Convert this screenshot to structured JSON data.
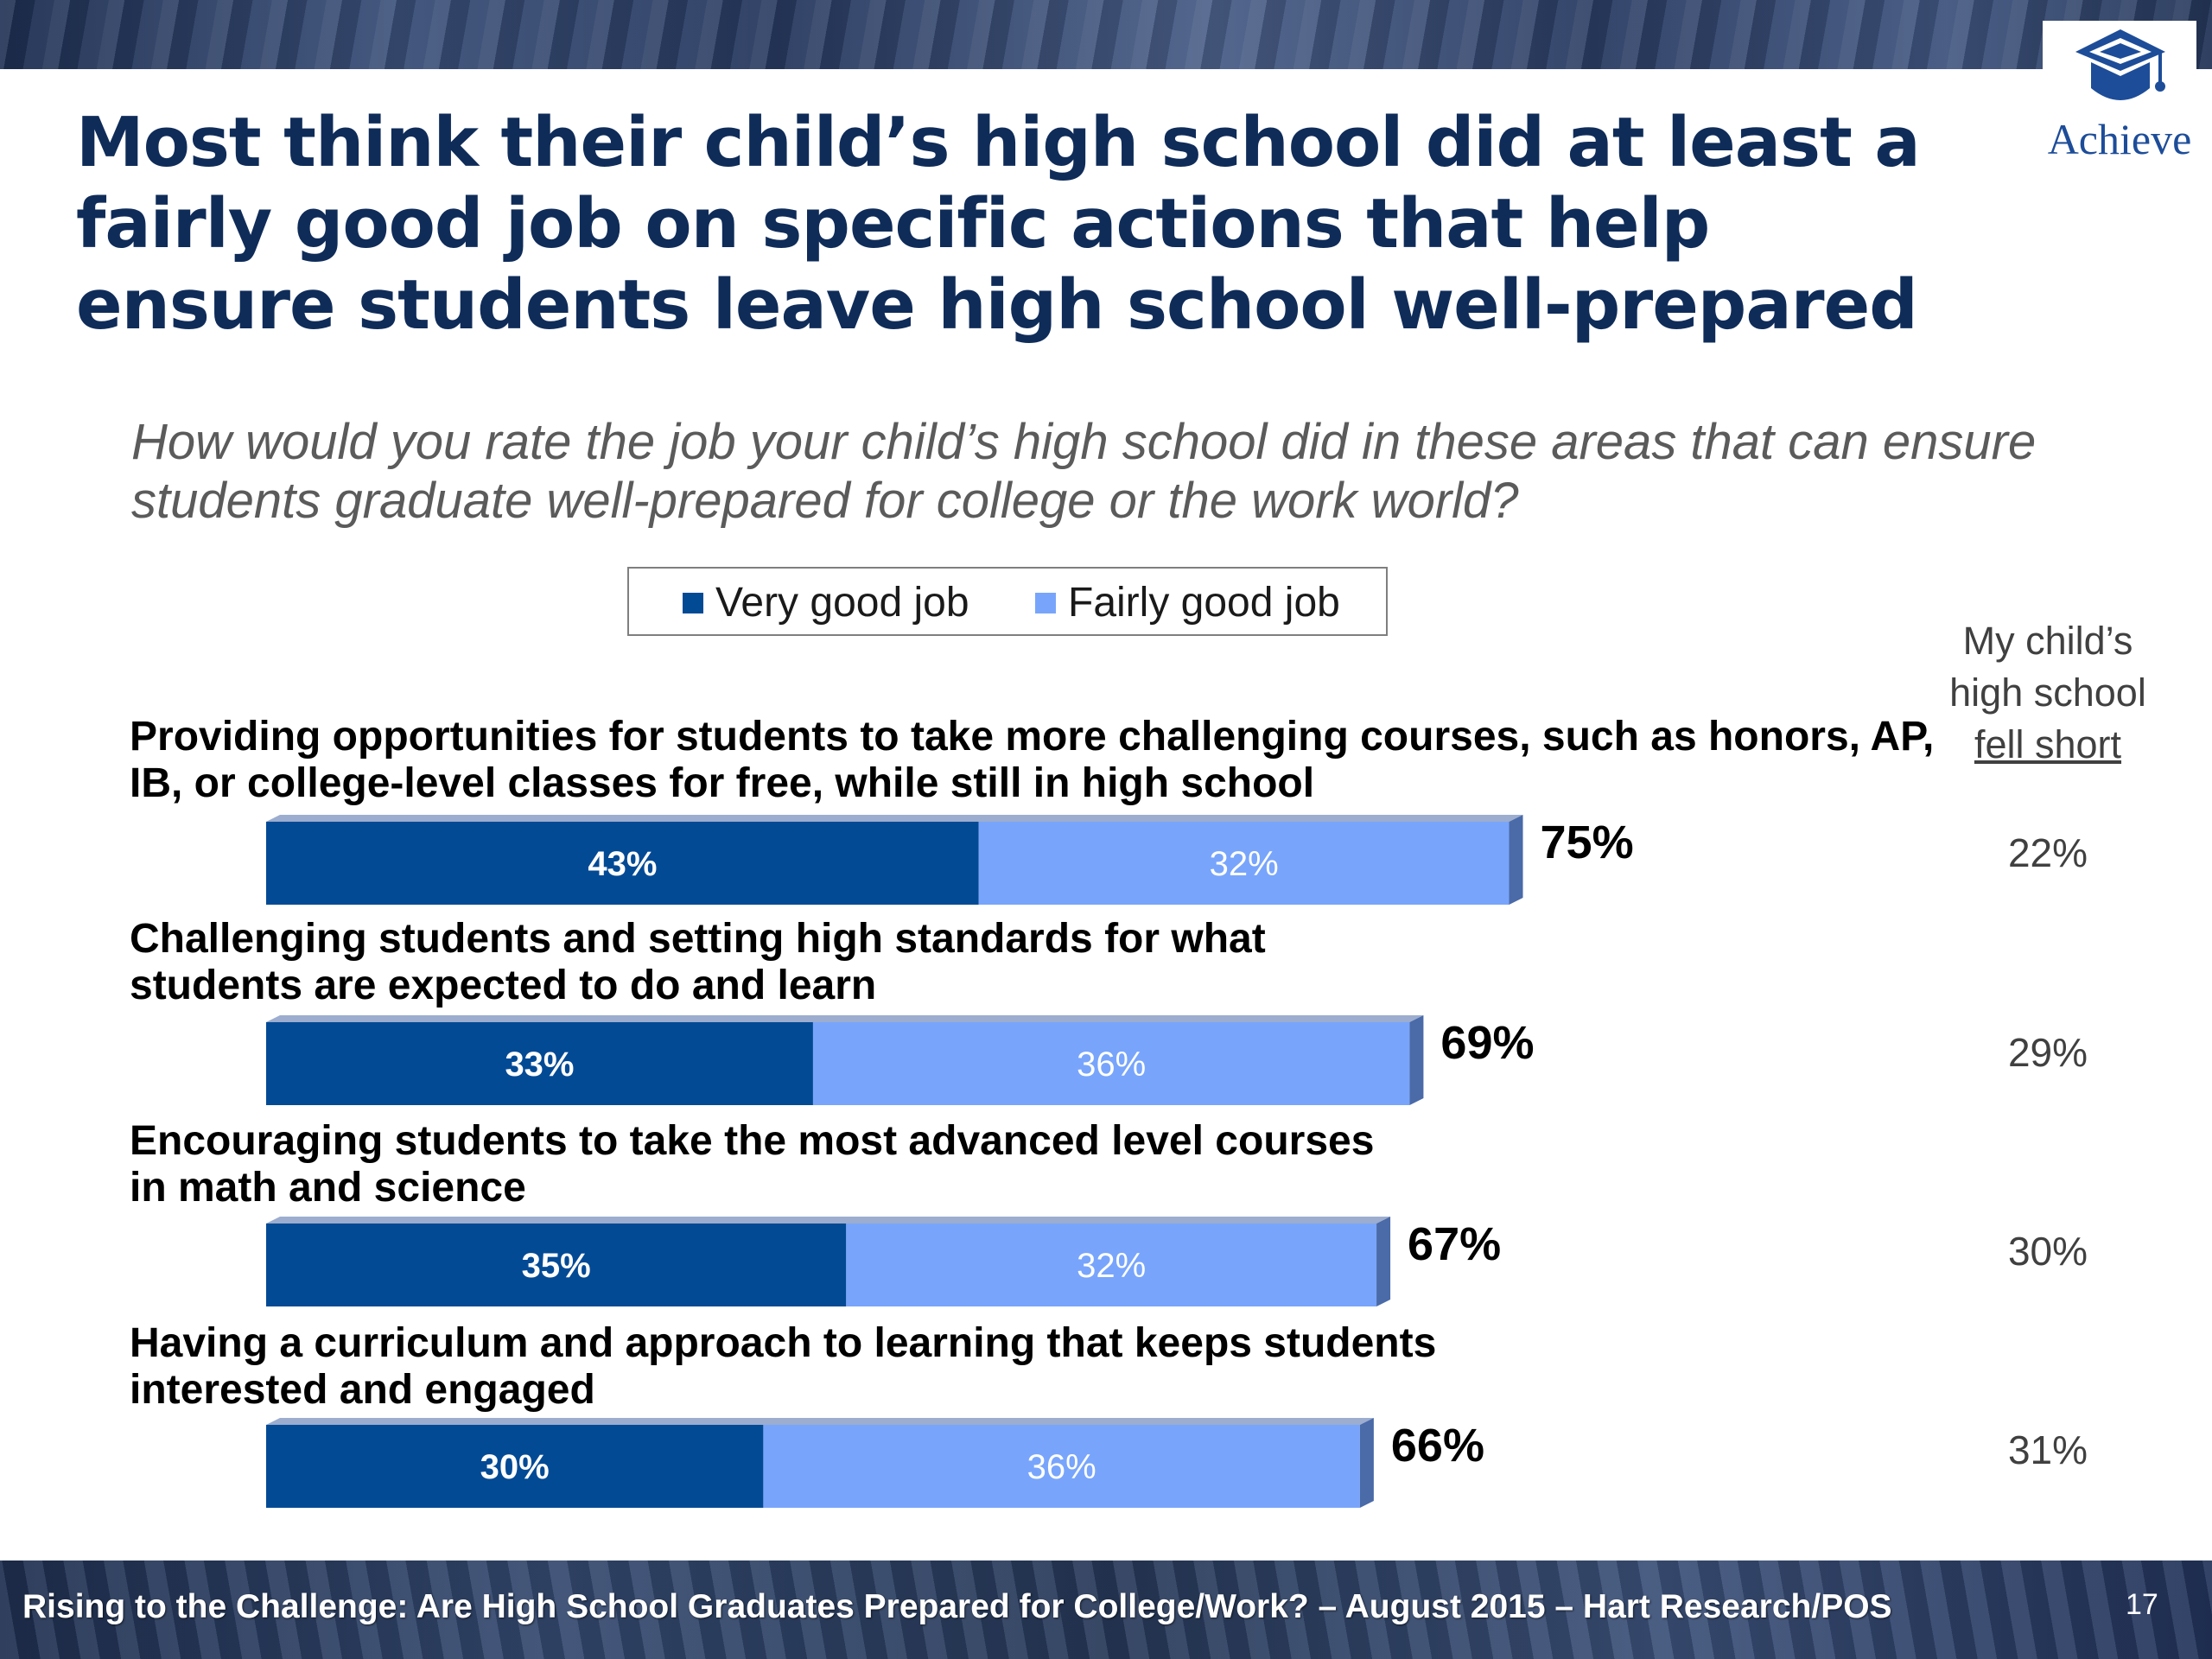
{
  "title": "Most think their child’s high school did at least a fairly good job on specific actions that help ensure students leave high school well-prepared",
  "question": "How would you rate the job your child’s high school did in these areas that can ensure students graduate well-prepared for college or the work world?",
  "logo": {
    "text": "Achieve",
    "icon": "graduation-cap-icon"
  },
  "short_header": {
    "line1": "My child’s",
    "line2": "high school",
    "line3": "fell short"
  },
  "footer": {
    "source": "Rising to the Challenge:  Are High School Graduates Prepared for College/Work? – August 2015 – Hart Research/POS",
    "page": "17"
  },
  "colors": {
    "very_good": "#034a95",
    "fairly_good": "#78a5fb",
    "bar_side": "#4a6aa8",
    "title": "#0f2c59"
  },
  "chart_data": {
    "type": "bar",
    "orientation": "horizontal",
    "stacked": true,
    "legend_position": "top",
    "categories": [
      "Providing opportunities for students to take more challenging courses, such as honors, AP, IB, or college-level classes for free, while still in high school",
      "Challenging students and setting high standards for what students are expected to do and learn",
      "Encouraging students to take the most advanced level courses in math and science",
      "Having a curriculum and approach to learning that keeps students interested and engaged"
    ],
    "series": [
      {
        "name": "Very good job",
        "values": [
          43,
          33,
          35,
          30
        ],
        "labels": [
          "43%",
          "33%",
          "35%",
          "30%"
        ]
      },
      {
        "name": "Fairly good job",
        "values": [
          32,
          36,
          32,
          36
        ],
        "labels": [
          "32%",
          "36%",
          "32%",
          "36%"
        ]
      }
    ],
    "totals": [
      75,
      69,
      67,
      66
    ],
    "total_labels": [
      "75%",
      "69%",
      "67%",
      "66%"
    ],
    "fell_short": [
      "22%",
      "29%",
      "30%",
      "31%"
    ],
    "xlim": [
      0,
      100
    ]
  }
}
